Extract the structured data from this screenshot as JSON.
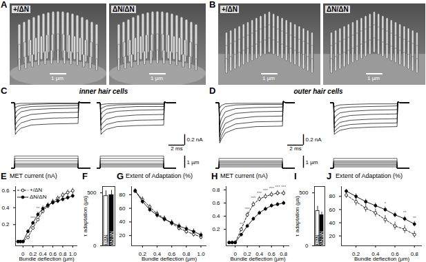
{
  "figure": {
    "images": [
      {
        "label": "A",
        "panels": [
          {
            "genotype": "+/ΔN",
            "scale_bar": "1 µm"
          },
          {
            "genotype": "ΔN/ΔN",
            "scale_bar": "1 µm"
          }
        ]
      },
      {
        "label": "B",
        "panels": [
          {
            "genotype": "+/ΔN",
            "scale_bar": "1 µm"
          },
          {
            "genotype": "ΔN/ΔN",
            "scale_bar": "1 µm"
          }
        ]
      }
    ]
  },
  "traces": [
    {
      "label": "C",
      "title": "inner hair cells",
      "xlim": [
        0,
        10
      ],
      "ylim": [
        -0.8,
        0.06
      ],
      "t": [
        0,
        0.4,
        0.5,
        0.7,
        1.2,
        2.5,
        5,
        8.4,
        8.5,
        8.8,
        10
      ],
      "panels": [
        [
          [
            0,
            0,
            -0.03,
            -0.02,
            -0.01,
            -0.01,
            -0.005,
            -0.005,
            0,
            0,
            0
          ],
          [
            0,
            0,
            -0.1,
            -0.07,
            -0.05,
            -0.03,
            -0.02,
            -0.02,
            0.01,
            0,
            0
          ],
          [
            0,
            0,
            -0.2,
            -0.15,
            -0.1,
            -0.07,
            -0.06,
            -0.05,
            0.02,
            0,
            0
          ],
          [
            0,
            0,
            -0.3,
            -0.24,
            -0.17,
            -0.13,
            -0.11,
            -0.1,
            0.02,
            0,
            0
          ],
          [
            0,
            0,
            -0.42,
            -0.36,
            -0.28,
            -0.22,
            -0.19,
            -0.18,
            0.02,
            0,
            0
          ],
          [
            0,
            0,
            -0.52,
            -0.46,
            -0.38,
            -0.32,
            -0.29,
            -0.28,
            0.02,
            0,
            0
          ],
          [
            0,
            0,
            -0.6,
            -0.55,
            -0.48,
            -0.42,
            -0.4,
            -0.39,
            0.02,
            0,
            0
          ]
        ],
        [
          [
            0,
            0,
            -0.04,
            -0.03,
            -0.02,
            -0.015,
            -0.01,
            -0.01,
            0,
            0,
            0
          ],
          [
            0,
            0,
            -0.12,
            -0.09,
            -0.06,
            -0.04,
            -0.03,
            -0.03,
            0.01,
            0,
            0
          ],
          [
            0,
            0,
            -0.22,
            -0.17,
            -0.12,
            -0.09,
            -0.07,
            -0.07,
            0.02,
            0,
            0
          ],
          [
            0,
            0,
            -0.33,
            -0.27,
            -0.2,
            -0.16,
            -0.14,
            -0.13,
            0.02,
            0,
            0
          ],
          [
            0,
            0,
            -0.43,
            -0.38,
            -0.31,
            -0.26,
            -0.23,
            -0.22,
            0.02,
            0,
            0
          ],
          [
            0,
            0,
            -0.52,
            -0.48,
            -0.41,
            -0.36,
            -0.33,
            -0.32,
            0.02,
            0,
            0
          ],
          [
            0,
            0,
            -0.6,
            -0.56,
            -0.5,
            -0.45,
            -0.43,
            -0.42,
            0.02,
            0,
            0
          ]
        ]
      ],
      "stimulus": {
        "ylim": [
          -0.15,
          1.1
        ],
        "on": 0.4,
        "off": 8.4,
        "displacements": [
          0.1,
          0.2,
          0.3,
          0.4,
          0.6,
          0.8,
          1
        ]
      },
      "scale_bars": {
        "current": {
          "value": 0.2,
          "label": "0.2 nA"
        },
        "time": {
          "value": 2,
          "label": "2 ms"
        },
        "displacement": {
          "value": 1,
          "label": "1 µm"
        }
      }
    },
    {
      "label": "D",
      "title": "outer hair cells",
      "xlim": [
        0,
        10
      ],
      "ylim": [
        -0.8,
        0.06
      ],
      "t": [
        0,
        0.4,
        0.5,
        0.7,
        1.2,
        2.5,
        5,
        8.4,
        8.5,
        8.8,
        10
      ],
      "panels": [
        [
          [
            0,
            0,
            -0.1,
            -0.05,
            -0.02,
            -0.01,
            -0.01,
            -0.01,
            0.01,
            0,
            0
          ],
          [
            0,
            0,
            -0.25,
            -0.15,
            -0.07,
            -0.04,
            -0.03,
            -0.03,
            0.02,
            0,
            0
          ],
          [
            0,
            0,
            -0.42,
            -0.3,
            -0.17,
            -0.11,
            -0.09,
            -0.08,
            0.03,
            0,
            0
          ],
          [
            0,
            0,
            -0.55,
            -0.43,
            -0.28,
            -0.2,
            -0.17,
            -0.16,
            0.03,
            0,
            0
          ],
          [
            0,
            0,
            -0.65,
            -0.54,
            -0.39,
            -0.3,
            -0.26,
            -0.25,
            0.03,
            0,
            0
          ],
          [
            0,
            0,
            -0.72,
            -0.63,
            -0.49,
            -0.4,
            -0.36,
            -0.35,
            0.03,
            0,
            0
          ],
          [
            0,
            0,
            -0.76,
            -0.69,
            -0.57,
            -0.49,
            -0.45,
            -0.44,
            0.03,
            0,
            0
          ]
        ],
        [
          [
            0,
            0,
            -0.08,
            -0.06,
            -0.04,
            -0.03,
            -0.02,
            -0.02,
            0.01,
            0,
            0
          ],
          [
            0,
            0,
            -0.18,
            -0.14,
            -0.1,
            -0.08,
            -0.07,
            -0.06,
            0.02,
            0,
            0
          ],
          [
            0,
            0,
            -0.3,
            -0.25,
            -0.19,
            -0.16,
            -0.14,
            -0.13,
            0.02,
            0,
            0
          ],
          [
            0,
            0,
            -0.4,
            -0.35,
            -0.28,
            -0.24,
            -0.22,
            -0.21,
            0.02,
            0,
            0
          ],
          [
            0,
            0,
            -0.48,
            -0.44,
            -0.37,
            -0.33,
            -0.31,
            -0.3,
            0.02,
            0,
            0
          ],
          [
            0,
            0,
            -0.55,
            -0.51,
            -0.45,
            -0.41,
            -0.39,
            -0.38,
            0.02,
            0,
            0
          ],
          [
            0,
            0,
            -0.6,
            -0.57,
            -0.52,
            -0.48,
            -0.46,
            -0.45,
            0.02,
            0,
            0
          ]
        ]
      ],
      "stimulus": {
        "ylim": [
          -0.15,
          1.1
        ],
        "on": 0.4,
        "off": 8.4,
        "displacements": [
          0.1,
          0.2,
          0.3,
          0.4,
          0.5,
          0.6,
          0.8
        ]
      },
      "scale_bars": {
        "current": {
          "value": 0.2,
          "label": "0.2 nA"
        },
        "time": {
          "value": 2,
          "label": "2 ms"
        },
        "displacement": {
          "value": 1,
          "label": "1 µm"
        }
      }
    }
  ],
  "chart_data": [
    {
      "label": "E",
      "type": "line",
      "y_label": "MET current (nA)",
      "x_label": "Bundle deflection (µm)",
      "x": [
        -0.1,
        -0.05,
        0,
        0.1,
        0.2,
        0.3,
        0.4,
        0.5,
        0.6,
        0.7,
        0.8,
        0.9,
        1
      ],
      "xlim": [
        -0.15,
        1.1
      ],
      "xticks": [
        0,
        0.2,
        0.4,
        0.6,
        0.8,
        {
          "value": 1,
          "label": "1.0"
        }
      ],
      "ylim": [
        -0.05,
        0.65
      ],
      "yticks": [
        0.2,
        0.4,
        0.6
      ],
      "legend": "top-left",
      "series": [
        {
          "name": "+/ΔN",
          "color": "#000000",
          "marker": "open_circle",
          "line_style": "dashed",
          "values": [
            0,
            0,
            0,
            0.05,
            0.16,
            0.26,
            0.36,
            0.42,
            0.47,
            0.51,
            0.55,
            0.58,
            0.6
          ],
          "errors": [
            0.01,
            0.01,
            0.01,
            0.01,
            0.02,
            0.02,
            0.03,
            0.03,
            0.03,
            0.03,
            0.03,
            0.03,
            0.03
          ]
        },
        {
          "name": "ΔN/ΔN",
          "color": "#000000",
          "marker": "filled_circle",
          "line_style": "solid",
          "values": [
            0,
            0,
            0,
            0.12,
            0.22,
            0.32,
            0.39,
            0.43,
            0.46,
            0.48,
            0.5,
            0.52,
            0.54
          ],
          "errors": [
            0.01,
            0.01,
            0.01,
            0.02,
            0.02,
            0.03,
            0.03,
            0.03,
            0.03,
            0.03,
            0.03,
            0.03,
            0.03
          ]
        }
      ],
      "annotations": [
        {
          "x": 0.2,
          "text": "***"
        },
        {
          "x": 0.3,
          "text": "**"
        }
      ]
    },
    {
      "label": "F",
      "type": "bar",
      "y_label": "τ adaptation (µs)",
      "categories": [
        "+/ΔN",
        "ΔN/ΔN"
      ],
      "values": [
        470,
        480
      ],
      "errors": [
        50,
        45
      ],
      "colors": [
        "#ffffff",
        "#000000"
      ],
      "ylim": [
        0,
        560
      ],
      "yticks": [
        0,
        500
      ]
    },
    {
      "label": "G",
      "type": "line",
      "y_label": "Extent of Adaptation (%)",
      "x_label": "Bundle deflection (µm)",
      "x": [
        0.1,
        0.2,
        0.3,
        0.4,
        0.5,
        0.6,
        0.7,
        0.8,
        0.9,
        1
      ],
      "xlim": [
        0.05,
        1.08
      ],
      "xticks": [
        0.2,
        0.4,
        0.6,
        0.8,
        {
          "value": 1,
          "label": "1.0"
        }
      ],
      "ylim": [
        5,
        92
      ],
      "yticks": [
        20,
        40,
        60,
        80
      ],
      "series": [
        {
          "color": "#000000",
          "marker": "open_circle",
          "line_style": "dashed",
          "values": [
            85,
            73,
            62,
            52,
            45,
            38,
            31,
            26,
            22,
            18
          ],
          "errors": [
            3,
            4,
            4,
            4,
            4,
            4,
            4,
            4,
            4,
            4
          ]
        },
        {
          "color": "#000000",
          "marker": "filled_circle",
          "line_style": "solid",
          "values": [
            86,
            70,
            58,
            50,
            44,
            39,
            34,
            30,
            26,
            21
          ],
          "errors": [
            3,
            4,
            4,
            4,
            4,
            4,
            4,
            4,
            4,
            4
          ]
        }
      ]
    },
    {
      "label": "H",
      "type": "line",
      "y_label": "MET current (nA)",
      "x_label": "Bundle deflection (µm)",
      "x": [
        -0.1,
        -0.05,
        0,
        0.1,
        0.2,
        0.3,
        0.4,
        0.5,
        0.6,
        0.7,
        0.8
      ],
      "xlim": [
        -0.15,
        0.9
      ],
      "xticks": [
        0,
        0.2,
        0.4,
        0.6,
        0.8
      ],
      "ylim": [
        -0.05,
        0.85
      ],
      "yticks": [
        0.2,
        0.4,
        0.6,
        0.8
      ],
      "series": [
        {
          "color": "#000000",
          "marker": "open_circle",
          "line_style": "dashed",
          "values": [
            0,
            0,
            0,
            0.2,
            0.42,
            0.58,
            0.66,
            0.7,
            0.73,
            0.75,
            0.75
          ],
          "errors": [
            0.01,
            0.01,
            0.01,
            0.03,
            0.04,
            0.04,
            0.04,
            0.04,
            0.04,
            0.04,
            0.04
          ]
        },
        {
          "color": "#000000",
          "marker": "filled_circle",
          "line_style": "solid",
          "values": [
            0,
            0,
            0,
            0.12,
            0.25,
            0.36,
            0.45,
            0.51,
            0.56,
            0.58,
            0.6
          ],
          "errors": [
            0.01,
            0.01,
            0.01,
            0.02,
            0.03,
            0.03,
            0.03,
            0.03,
            0.03,
            0.03,
            0.03
          ]
        }
      ],
      "annotations": [
        {
          "x": 0.1,
          "text": "**"
        },
        {
          "x": 0.2,
          "text": "***"
        },
        {
          "x": 0.3,
          "text": "***"
        },
        {
          "x": 0.4,
          "text": "***"
        },
        {
          "x": 0.5,
          "text": "***"
        },
        {
          "x": 0.6,
          "text": "***"
        },
        {
          "x": 0.7,
          "text": "***"
        },
        {
          "x": 0.8,
          "text": "***"
        }
      ]
    },
    {
      "label": "I",
      "type": "bar",
      "y_label": "τ adaptation (µs)",
      "categories": [
        "+/ΔN",
        "ΔN/ΔN"
      ],
      "values": [
        330,
        290
      ],
      "errors": [
        45,
        30
      ],
      "colors": [
        "#ffffff",
        "#000000"
      ],
      "ylim": [
        0,
        560
      ],
      "yticks": [
        0,
        500
      ]
    },
    {
      "label": "J",
      "type": "line",
      "y_label": "Extent of Adaptation (%)",
      "x_label": "Bundle deflection (µm)",
      "x": [
        0.1,
        0.2,
        0.3,
        0.4,
        0.5,
        0.6,
        0.7,
        0.8
      ],
      "xlim": [
        0.05,
        0.88
      ],
      "xticks": [
        0.2,
        0.4,
        0.6,
        0.8
      ],
      "ylim": [
        5,
        95
      ],
      "yticks": [
        20,
        40,
        60,
        80
      ],
      "series": [
        {
          "color": "#000000",
          "marker": "open_circle",
          "line_style": "dashed",
          "values": [
            82,
            72,
            62,
            55,
            45,
            35,
            30,
            22
          ],
          "errors": [
            5,
            6,
            6,
            6,
            6,
            6,
            6,
            5
          ]
        },
        {
          "color": "#000000",
          "marker": "filled_circle",
          "line_style": "solid",
          "values": [
            88,
            80,
            72,
            66,
            60,
            52,
            46,
            38
          ],
          "errors": [
            3,
            4,
            4,
            4,
            4,
            4,
            4,
            4
          ]
        }
      ],
      "annotations": [
        {
          "x": 0.5,
          "text": "*"
        },
        {
          "x": 0.7,
          "text": "**"
        },
        {
          "x": 0.8,
          "text": "**"
        }
      ]
    }
  ]
}
